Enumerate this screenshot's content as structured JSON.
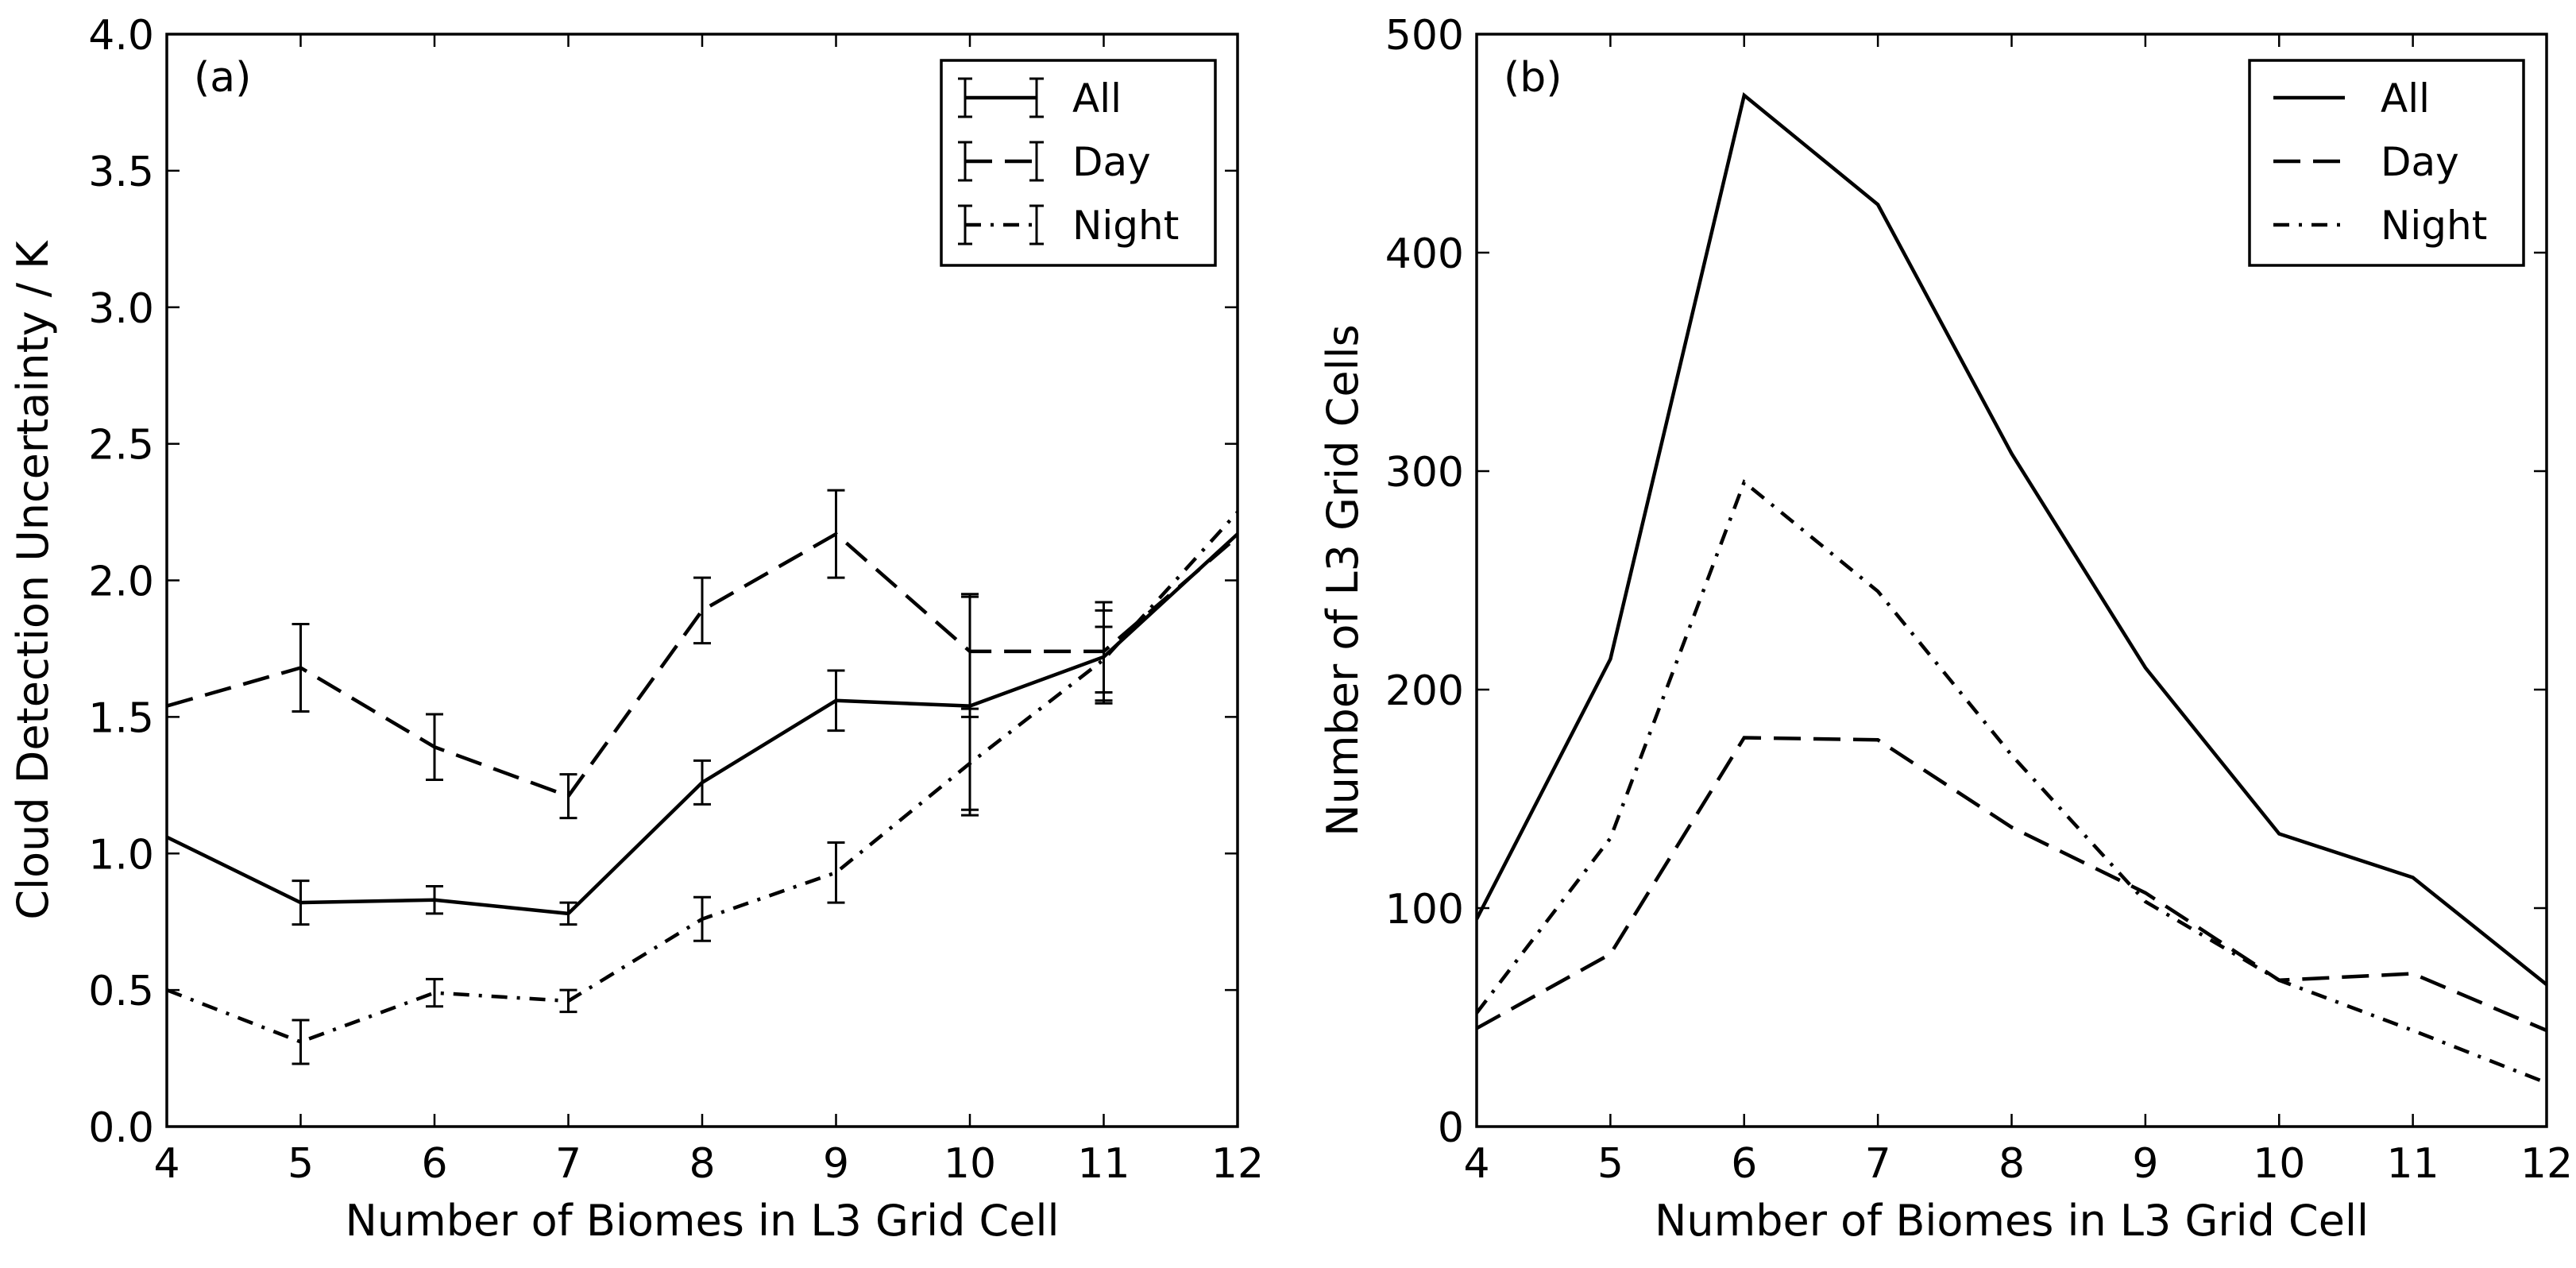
{
  "chart_data": [
    {
      "panel": "(a)",
      "type": "line",
      "xlabel": "Number of Biomes in L3 Grid Cell",
      "ylabel": "Cloud Detection Uncertainty / K",
      "xlim": [
        4,
        12
      ],
      "ylim": [
        0.0,
        4.0
      ],
      "xticks": [
        "4",
        "5",
        "6",
        "7",
        "8",
        "9",
        "10",
        "11",
        "12"
      ],
      "yticks": [
        "0.0",
        "0.5",
        "1.0",
        "1.5",
        "2.0",
        "2.5",
        "3.0",
        "3.5",
        "4.0"
      ],
      "legend_position": "top-right",
      "error_bars": true,
      "x": [
        4,
        5,
        6,
        7,
        8,
        9,
        10,
        11,
        12
      ],
      "series": [
        {
          "name": "All",
          "style": "solid",
          "values": [
            1.06,
            0.82,
            0.83,
            0.78,
            1.26,
            1.56,
            1.54,
            1.72,
            2.17
          ],
          "errors": [
            0.0,
            0.08,
            0.05,
            0.04,
            0.08,
            0.11,
            0.4,
            0.17,
            0.0
          ]
        },
        {
          "name": "Day",
          "style": "dashed",
          "values": [
            1.54,
            1.68,
            1.39,
            1.21,
            1.89,
            2.17,
            1.74,
            1.74,
            2.16
          ],
          "errors": [
            0.0,
            0.16,
            0.12,
            0.08,
            0.12,
            0.16,
            0.21,
            0.18,
            0.0
          ]
        },
        {
          "name": "Night",
          "style": "dashdot",
          "values": [
            0.5,
            0.31,
            0.49,
            0.46,
            0.76,
            0.93,
            1.33,
            1.71,
            2.25
          ],
          "errors": [
            0.0,
            0.08,
            0.05,
            0.04,
            0.08,
            0.11,
            0.17,
            0.12,
            0.0
          ]
        }
      ]
    },
    {
      "panel": "(b)",
      "type": "line",
      "xlabel": "Number of Biomes in L3 Grid Cell",
      "ylabel": "Number of L3 Grid Cells",
      "xlim": [
        4,
        12
      ],
      "ylim": [
        0,
        500
      ],
      "xticks": [
        "4",
        "5",
        "6",
        "7",
        "8",
        "9",
        "10",
        "11",
        "12"
      ],
      "yticks": [
        "0",
        "100",
        "200",
        "300",
        "400",
        "500"
      ],
      "legend_position": "top-right",
      "error_bars": false,
      "x": [
        4,
        5,
        6,
        7,
        8,
        9,
        10,
        11,
        12
      ],
      "series": [
        {
          "name": "All",
          "style": "solid",
          "values": [
            95,
            214,
            472,
            422,
            308,
            210,
            134,
            114,
            65
          ]
        },
        {
          "name": "Day",
          "style": "dashed",
          "values": [
            45,
            79,
            178,
            177,
            137,
            107,
            67,
            70,
            44
          ]
        },
        {
          "name": "Night",
          "style": "dashdot",
          "values": [
            52,
            132,
            295,
            245,
            170,
            103,
            67,
            44,
            20
          ]
        }
      ]
    }
  ]
}
